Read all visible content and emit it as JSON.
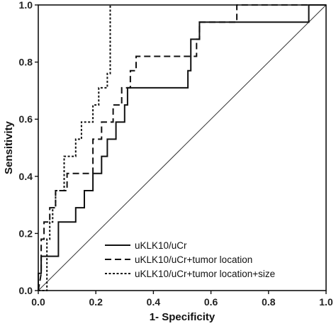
{
  "chart_data": {
    "type": "line",
    "xlabel": "1- Specificity",
    "ylabel": "Sensitivity",
    "xlim": [
      0,
      1
    ],
    "ylim": [
      0,
      1
    ],
    "xticks": [
      "0.0",
      "0.2",
      "0.4",
      "0.6",
      "0.8",
      "1.0"
    ],
    "yticks": [
      "0.0",
      "0.2",
      "0.4",
      "0.6",
      "0.8",
      "1.0"
    ],
    "grid": false,
    "legend_position": "bottom-right",
    "reference_line": [
      [
        0,
        0
      ],
      [
        1,
        1
      ]
    ],
    "series": [
      {
        "name": "uKLK10/uCr",
        "style": "solid",
        "points": [
          [
            0,
            0
          ],
          [
            0,
            0.06
          ],
          [
            0.01,
            0.06
          ],
          [
            0.01,
            0.12
          ],
          [
            0.07,
            0.12
          ],
          [
            0.07,
            0.18
          ],
          [
            0.07,
            0.24
          ],
          [
            0.13,
            0.24
          ],
          [
            0.13,
            0.29
          ],
          [
            0.16,
            0.29
          ],
          [
            0.16,
            0.35
          ],
          [
            0.19,
            0.35
          ],
          [
            0.19,
            0.41
          ],
          [
            0.22,
            0.41
          ],
          [
            0.22,
            0.47
          ],
          [
            0.24,
            0.47
          ],
          [
            0.24,
            0.53
          ],
          [
            0.27,
            0.53
          ],
          [
            0.27,
            0.59
          ],
          [
            0.3,
            0.59
          ],
          [
            0.3,
            0.65
          ],
          [
            0.31,
            0.65
          ],
          [
            0.31,
            0.71
          ],
          [
            0.52,
            0.71
          ],
          [
            0.52,
            0.77
          ],
          [
            0.53,
            0.77
          ],
          [
            0.53,
            0.88
          ],
          [
            0.56,
            0.88
          ],
          [
            0.56,
            0.94
          ],
          [
            0.94,
            0.94
          ],
          [
            0.94,
            1.0
          ],
          [
            1.0,
            1.0
          ]
        ]
      },
      {
        "name": "uKLK10/uCr+tumor location",
        "style": "dashed",
        "points": [
          [
            0,
            0
          ],
          [
            0.01,
            0.06
          ],
          [
            0.01,
            0.18
          ],
          [
            0.02,
            0.18
          ],
          [
            0.02,
            0.24
          ],
          [
            0.04,
            0.24
          ],
          [
            0.04,
            0.29
          ],
          [
            0.06,
            0.29
          ],
          [
            0.06,
            0.35
          ],
          [
            0.1,
            0.35
          ],
          [
            0.1,
            0.41
          ],
          [
            0.19,
            0.41
          ],
          [
            0.19,
            0.53
          ],
          [
            0.22,
            0.53
          ],
          [
            0.22,
            0.59
          ],
          [
            0.26,
            0.59
          ],
          [
            0.26,
            0.65
          ],
          [
            0.29,
            0.65
          ],
          [
            0.29,
            0.71
          ],
          [
            0.32,
            0.71
          ],
          [
            0.32,
            0.77
          ],
          [
            0.34,
            0.77
          ],
          [
            0.34,
            0.82
          ],
          [
            0.55,
            0.82
          ],
          [
            0.55,
            0.88
          ],
          [
            0.56,
            0.88
          ],
          [
            0.56,
            0.94
          ],
          [
            0.69,
            0.94
          ],
          [
            0.69,
            1.0
          ],
          [
            1.0,
            1.0
          ]
        ]
      },
      {
        "name": "uKLK10/uCr+tumor location+size",
        "style": "dotted",
        "points": [
          [
            0,
            0
          ],
          [
            0.03,
            0.0
          ],
          [
            0.03,
            0.06
          ],
          [
            0.03,
            0.18
          ],
          [
            0.04,
            0.18
          ],
          [
            0.04,
            0.24
          ],
          [
            0.05,
            0.24
          ],
          [
            0.05,
            0.29
          ],
          [
            0.06,
            0.29
          ],
          [
            0.06,
            0.35
          ],
          [
            0.09,
            0.35
          ],
          [
            0.09,
            0.47
          ],
          [
            0.13,
            0.47
          ],
          [
            0.13,
            0.53
          ],
          [
            0.15,
            0.53
          ],
          [
            0.15,
            0.59
          ],
          [
            0.19,
            0.59
          ],
          [
            0.19,
            0.65
          ],
          [
            0.21,
            0.65
          ],
          [
            0.21,
            0.71
          ],
          [
            0.24,
            0.71
          ],
          [
            0.24,
            0.76
          ],
          [
            0.25,
            0.76
          ],
          [
            0.25,
            1.0
          ]
        ]
      }
    ]
  }
}
